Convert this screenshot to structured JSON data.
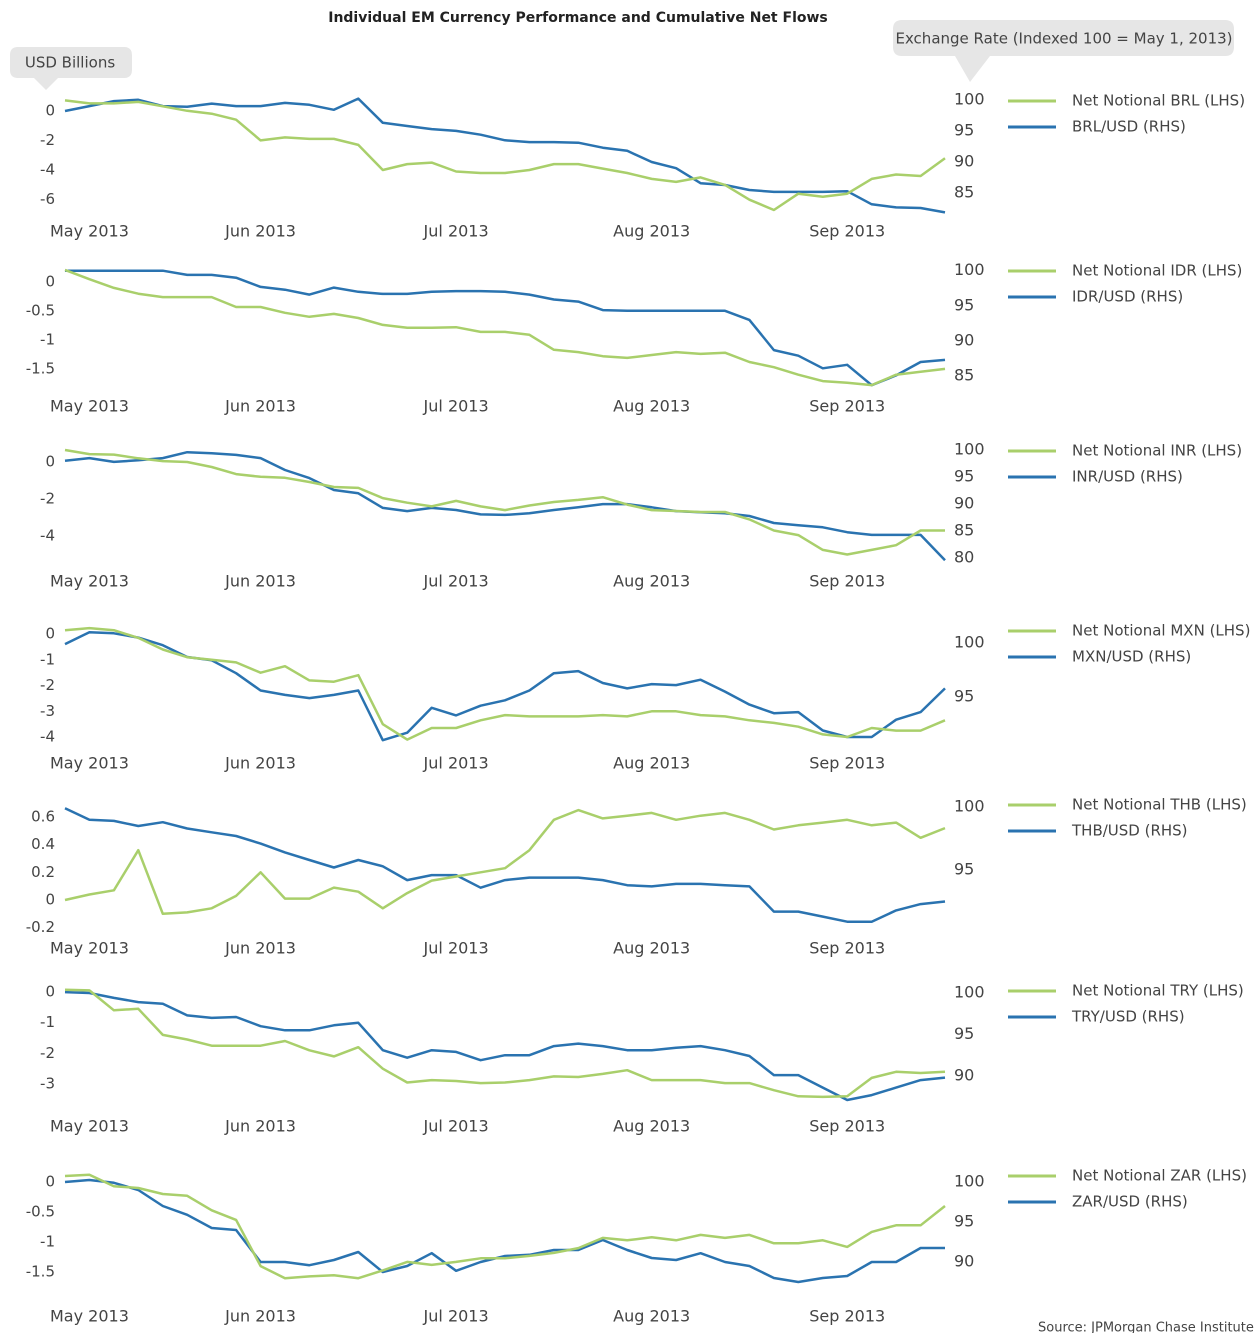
{
  "title": "Individual EM Currency Performance and Cumulative Net Flows",
  "left_axis_label": "USD Billions",
  "right_axis_label": "Exchange Rate (Indexed 100 = May 1, 2013)",
  "source": "Source: JPMorgan Chase Institute",
  "chart_data": [
    {
      "type": "line",
      "categories": [
        null,
        "May 2013",
        null,
        null,
        null,
        null,
        null,
        null,
        "Jun 2013",
        null,
        null,
        null,
        null,
        null,
        null,
        null,
        "Jul 2013",
        null,
        null,
        null,
        null,
        null,
        null,
        null,
        "Aug 2013",
        null,
        null,
        null,
        null,
        null,
        null,
        null,
        "Sep 2013",
        null,
        null,
        null,
        null
      ],
      "series": [
        {
          "name": "Net Notional BRL (LHS)",
          "color": "#a9cf6b",
          "values": [
            0.7,
            0.5,
            0.5,
            0.6,
            0.3,
            0.0,
            -0.2,
            -0.6,
            -2.0,
            -1.8,
            -1.9,
            -1.9,
            -2.3,
            -4.0,
            -3.6,
            -3.5,
            -4.1,
            -4.2,
            -4.2,
            -4.0,
            -3.6,
            -3.6,
            -3.9,
            -4.2,
            -4.6,
            -4.8,
            -4.5,
            -5.0,
            -6.0,
            -6.7,
            -5.6,
            -5.8,
            -5.6,
            -4.6,
            -4.3,
            -4.4,
            -3.2
          ]
        },
        {
          "name": "BRL/USD (RHS)",
          "color": "#2a73b0",
          "axis": "y2",
          "values": [
            98.2,
            99.0,
            99.8,
            100,
            99.0,
            98.9,
            99.4,
            99.0,
            99.0,
            99.5,
            99.2,
            98.4,
            100.2,
            96.3,
            95.8,
            95.3,
            95.0,
            94.4,
            93.5,
            93.2,
            93.2,
            93.1,
            92.3,
            91.8,
            90.0,
            89.0,
            86.6,
            86.3,
            85.5,
            85.2,
            85.2,
            85.2,
            85.3,
            83.2,
            82.7,
            82.6,
            81.9
          ]
        }
      ],
      "ylim": [
        -6.9,
        1.2
      ],
      "yticks": [
        0,
        -2,
        -4,
        -6
      ],
      "y2lim": [
        81.8,
        101.1
      ],
      "y2ticks": [
        100,
        95,
        90,
        85
      ]
    },
    {
      "type": "line",
      "categories": [
        null,
        "May 2013",
        null,
        null,
        null,
        null,
        null,
        null,
        "Jun 2013",
        null,
        null,
        null,
        null,
        null,
        null,
        null,
        "Jul 2013",
        null,
        null,
        null,
        null,
        null,
        null,
        null,
        "Aug 2013",
        null,
        null,
        null,
        null,
        null,
        null,
        null,
        "Sep 2013",
        null,
        null,
        null,
        null
      ],
      "series": [
        {
          "name": "Net Notional IDR (LHS)",
          "color": "#a9cf6b",
          "values": [
            0.21,
            0.05,
            -0.1,
            -0.2,
            -0.26,
            -0.26,
            -0.26,
            -0.43,
            -0.43,
            -0.53,
            -0.6,
            -0.55,
            -0.62,
            -0.74,
            -0.79,
            -0.79,
            -0.78,
            -0.86,
            -0.86,
            -0.91,
            -1.17,
            -1.21,
            -1.28,
            -1.31,
            -1.26,
            -1.21,
            -1.24,
            -1.22,
            -1.38,
            -1.47,
            -1.6,
            -1.71,
            -1.74,
            -1.78,
            -1.6,
            -1.55,
            -1.5
          ]
        },
        {
          "name": "IDR/USD (RHS)",
          "color": "#2a73b0",
          "axis": "y2",
          "values": [
            100,
            100,
            100,
            100,
            100,
            99.4,
            99.4,
            99,
            97.7,
            97.3,
            96.6,
            97.6,
            97,
            96.7,
            96.7,
            97,
            97.1,
            97.1,
            97,
            96.6,
            95.9,
            95.6,
            94.4,
            94.3,
            94.3,
            94.3,
            94.3,
            94.3,
            93,
            88.7,
            87.9,
            86.1,
            86.6,
            83.7,
            85.1,
            87,
            87.3
          ]
        }
      ],
      "ylim": [
        -1.83,
        0.33
      ],
      "yticks": [
        0,
        -0.5,
        -1,
        -1.5
      ],
      "y2lim": [
        83.3,
        101.1
      ],
      "y2ticks": [
        100,
        95,
        90,
        85
      ]
    },
    {
      "type": "line",
      "categories": [
        null,
        "May 2013",
        null,
        null,
        null,
        null,
        null,
        null,
        "Jun 2013",
        null,
        null,
        null,
        null,
        null,
        null,
        null,
        "Jul 2013",
        null,
        null,
        null,
        null,
        null,
        null,
        null,
        "Aug 2013",
        null,
        null,
        null,
        null,
        null,
        null,
        null,
        "Sep 2013",
        null,
        null,
        null,
        null
      ],
      "series": [
        {
          "name": "Net Notional INR (LHS)",
          "color": "#a9cf6b",
          "values": [
            0.65,
            0.43,
            0.4,
            0.2,
            0.05,
            0,
            -0.27,
            -0.65,
            -0.8,
            -0.85,
            -1.08,
            -1.35,
            -1.4,
            -1.95,
            -2.2,
            -2.4,
            -2.1,
            -2.4,
            -2.6,
            -2.35,
            -2.16,
            -2.05,
            -1.9,
            -2.3,
            -2.6,
            -2.65,
            -2.7,
            -2.7,
            -3.1,
            -3.7,
            -3.95,
            -4.75,
            -5.0,
            -4.75,
            -4.5,
            -3.7,
            -3.7
          ]
        },
        {
          "name": "INR/USD (RHS)",
          "color": "#2a73b0",
          "axis": "y2",
          "values": [
            98,
            98.5,
            97.8,
            98.1,
            98.5,
            99.6,
            99.4,
            99.1,
            98.5,
            96.3,
            94.8,
            92.6,
            92,
            89.3,
            88.7,
            89.3,
            88.9,
            88.1,
            88,
            88.3,
            88.9,
            89.4,
            90,
            90,
            89.4,
            88.7,
            88.5,
            88.3,
            87.8,
            86.5,
            86.1,
            85.7,
            84.8,
            84.3,
            84.3,
            84.3,
            79.6
          ]
        }
      ],
      "ylim": [
        -5.46,
        1.03
      ],
      "yticks": [
        0,
        -2,
        -4
      ],
      "y2lim": [
        79.1,
        101.3
      ],
      "y2ticks": [
        100,
        95,
        90,
        85,
        80
      ]
    },
    {
      "type": "line",
      "categories": [
        null,
        "May 2013",
        null,
        null,
        null,
        null,
        null,
        null,
        "Jun 2013",
        null,
        null,
        null,
        null,
        null,
        null,
        null,
        "Jul 2013",
        null,
        null,
        null,
        null,
        null,
        null,
        null,
        "Aug 2013",
        null,
        null,
        null,
        null,
        null,
        null,
        null,
        "Sep 2013",
        null,
        null,
        null,
        null
      ],
      "series": [
        {
          "name": "Net Notional MXN (LHS)",
          "color": "#a9cf6b",
          "values": [
            0.15,
            0.23,
            0.15,
            -0.15,
            -0.6,
            -0.9,
            -1.0,
            -1.1,
            -1.5,
            -1.25,
            -1.8,
            -1.85,
            -1.6,
            -3.5,
            -4.1,
            -3.65,
            -3.65,
            -3.35,
            -3.15,
            -3.2,
            -3.2,
            -3.2,
            -3.15,
            -3.2,
            -3.0,
            -3.0,
            -3.15,
            -3.2,
            -3.35,
            -3.45,
            -3.6,
            -3.9,
            -4.0,
            -3.65,
            -3.75,
            -3.75,
            -3.35
          ]
        },
        {
          "name": "MXN/USD (RHS)",
          "color": "#2a73b0",
          "axis": "y2",
          "values": [
            99.9,
            101,
            100.9,
            100.5,
            99.8,
            98.7,
            98.4,
            97.2,
            95.6,
            95.2,
            94.9,
            95.2,
            95.6,
            91,
            91.7,
            94,
            93.3,
            94.2,
            94.7,
            95.6,
            97.2,
            97.4,
            96.3,
            95.8,
            96.2,
            96.1,
            96.6,
            95.5,
            94.3,
            93.5,
            93.6,
            91.9,
            91.3,
            91.3,
            92.9,
            93.6,
            95.8
          ]
        }
      ],
      "ylim": [
        -4.31,
        0.43
      ],
      "yticks": [
        0,
        -1,
        -2,
        -3,
        -4
      ],
      "y2lim": [
        90.56,
        101.85
      ],
      "y2ticks": [
        100,
        95
      ]
    },
    {
      "type": "line",
      "categories": [
        null,
        "May 2013",
        null,
        null,
        null,
        null,
        null,
        null,
        "Jun 2013",
        null,
        null,
        null,
        null,
        null,
        null,
        null,
        "Jul 2013",
        null,
        null,
        null,
        null,
        null,
        null,
        null,
        "Aug 2013",
        null,
        null,
        null,
        null,
        null,
        null,
        null,
        "Sep 2013",
        null,
        null,
        null,
        null
      ],
      "series": [
        {
          "name": "Net Notional THB (LHS)",
          "color": "#a9cf6b",
          "values": [
            0,
            0.04,
            0.07,
            0.36,
            -0.1,
            -0.09,
            -0.06,
            0.03,
            0.2,
            0.01,
            0.01,
            0.09,
            0.06,
            -0.06,
            0.05,
            0.14,
            0.17,
            0.2,
            0.23,
            0.36,
            0.58,
            0.65,
            0.59,
            0.61,
            0.63,
            0.58,
            0.61,
            0.63,
            0.58,
            0.51,
            0.54,
            0.56,
            0.58,
            0.54,
            0.56,
            0.45,
            0.52
          ]
        },
        {
          "name": "THB/USD (RHS)",
          "color": "#2a73b0",
          "axis": "y2",
          "values": [
            99.9,
            99,
            98.9,
            98.5,
            98.8,
            98.3,
            98,
            97.7,
            97.1,
            96.4,
            95.8,
            95.2,
            95.8,
            95.3,
            94.2,
            94.6,
            94.6,
            93.6,
            94.2,
            94.4,
            94.4,
            94.4,
            94.2,
            93.8,
            93.7,
            93.9,
            93.9,
            93.8,
            93.7,
            91.7,
            91.7,
            91.3,
            90.9,
            90.9,
            91.8,
            92.3,
            92.5
          ]
        }
      ],
      "ylim": [
        -0.217,
        0.745
      ],
      "yticks": [
        0.6,
        0.4,
        0.2,
        0,
        -0.2
      ],
      "y2lim": [
        90.24,
        100.8
      ],
      "y2ticks": [
        100,
        95
      ]
    },
    {
      "type": "line",
      "categories": [
        null,
        "May 2013",
        null,
        null,
        null,
        null,
        null,
        null,
        "Jun 2013",
        null,
        null,
        null,
        null,
        null,
        null,
        null,
        "Jul 2013",
        null,
        null,
        null,
        null,
        null,
        null,
        null,
        "Aug 2013",
        null,
        null,
        null,
        null,
        null,
        null,
        null,
        "Sep 2013",
        null,
        null,
        null,
        null
      ],
      "series": [
        {
          "name": "Net Notional TRY (LHS)",
          "color": "#a9cf6b",
          "values": [
            0.07,
            0.05,
            -0.6,
            -0.55,
            -1.4,
            -1.55,
            -1.75,
            -1.75,
            -1.75,
            -1.6,
            -1.9,
            -2.1,
            -1.8,
            -2.5,
            -2.95,
            -2.87,
            -2.9,
            -2.97,
            -2.95,
            -2.87,
            -2.75,
            -2.77,
            -2.67,
            -2.55,
            -2.87,
            -2.87,
            -2.87,
            -2.97,
            -2.97,
            -3.2,
            -3.4,
            -3.42,
            -3.4,
            -2.8,
            -2.6,
            -2.64,
            -2.6
          ]
        },
        {
          "name": "TRY/USD (RHS)",
          "color": "#2a73b0",
          "axis": "y2",
          "values": [
            100.1,
            100,
            99.4,
            98.9,
            98.7,
            97.3,
            97,
            97.1,
            96,
            95.5,
            95.5,
            96.1,
            96.4,
            93.1,
            92.2,
            93.1,
            92.9,
            91.9,
            92.5,
            92.5,
            93.6,
            93.9,
            93.6,
            93.1,
            93.1,
            93.4,
            93.6,
            93.1,
            92.4,
            90.1,
            90.1,
            88.6,
            87.1,
            87.7,
            88.6,
            89.5,
            89.8
          ]
        }
      ],
      "ylim": [
        -3.78,
        0.29
      ],
      "yticks": [
        0,
        -1,
        -2,
        -3
      ],
      "y2lim": [
        86.14,
        101.2
      ],
      "y2ticks": [
        100,
        95,
        90
      ]
    },
    {
      "type": "line",
      "categories": [
        null,
        "May 2013",
        null,
        null,
        null,
        null,
        null,
        null,
        "Jun 2013",
        null,
        null,
        null,
        null,
        null,
        null,
        null,
        "Jul 2013",
        null,
        null,
        null,
        null,
        null,
        null,
        null,
        "Aug 2013",
        null,
        null,
        null,
        null,
        null,
        null,
        null,
        "Sep 2013",
        null,
        null,
        null,
        null
      ],
      "series": [
        {
          "name": "Net Notional ZAR (LHS)",
          "color": "#a9cf6b",
          "values": [
            0.1,
            0.12,
            -0.07,
            -0.1,
            -0.2,
            -0.23,
            -0.47,
            -0.63,
            -1.4,
            -1.6,
            -1.57,
            -1.55,
            -1.6,
            -1.47,
            -1.33,
            -1.38,
            -1.33,
            -1.27,
            -1.27,
            -1.23,
            -1.18,
            -1.1,
            -0.93,
            -0.97,
            -0.92,
            -0.97,
            -0.88,
            -0.93,
            -0.88,
            -1.02,
            -1.02,
            -0.97,
            -1.08,
            -0.83,
            -0.72,
            -0.72,
            -0.4
          ]
        },
        {
          "name": "ZAR/USD (RHS)",
          "color": "#2a73b0",
          "axis": "y2",
          "values": [
            100,
            100.25,
            99.9,
            99,
            97,
            95.9,
            94.25,
            94,
            90,
            90,
            89.6,
            90.25,
            91.25,
            88.75,
            89.5,
            91.1,
            88.9,
            90,
            90.75,
            90.9,
            91.5,
            91.5,
            92.75,
            91.5,
            90.5,
            90.25,
            91.1,
            90,
            89.5,
            88,
            87.5,
            88,
            88.25,
            90,
            90,
            91.75,
            91.75
          ]
        }
      ],
      "ylim": [
        -1.93,
        0.233
      ],
      "yticks": [
        0,
        -0.5,
        -1,
        -1.5
      ],
      "y2lim": [
        85.5,
        101.75
      ],
      "y2ticks": [
        100,
        95,
        90
      ]
    }
  ]
}
